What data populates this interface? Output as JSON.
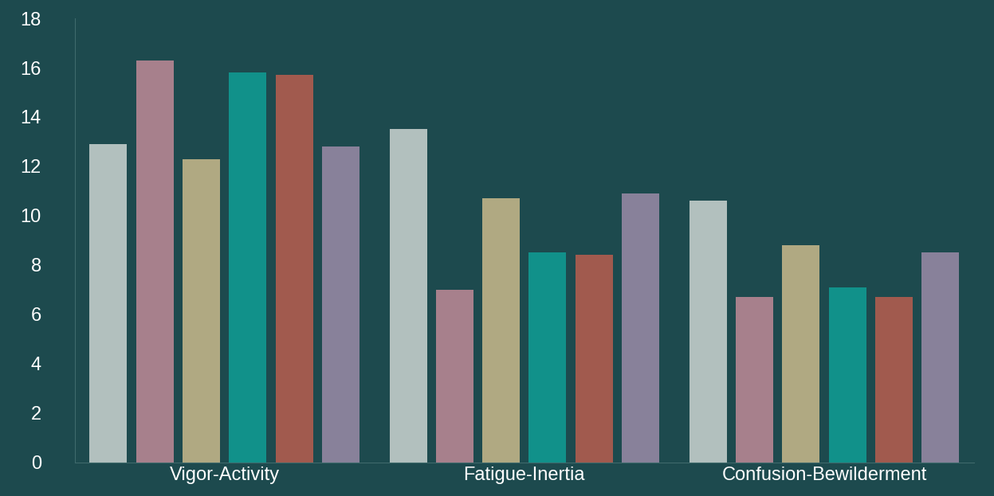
{
  "chart_data": {
    "type": "bar",
    "categories": [
      "Vigor-Activity",
      "Fatigue-Inertia",
      "Confusion-Bewilderment"
    ],
    "series": [
      {
        "color": "#cdd6d3",
        "values": [
          12.9,
          13.5,
          10.6
        ]
      },
      {
        "color": "#c08a98",
        "values": [
          16.3,
          7.0,
          6.7
        ]
      },
      {
        "color": "#cbbb8c",
        "values": [
          12.3,
          10.7,
          8.8
        ]
      },
      {
        "color": "#0f9e95",
        "values": [
          15.8,
          8.5,
          7.1
        ]
      },
      {
        "color": "#b95e4f",
        "values": [
          15.7,
          8.4,
          6.7
        ]
      },
      {
        "color": "#9c8ca8",
        "values": [
          12.8,
          10.9,
          8.5
        ]
      }
    ],
    "ylim": [
      0,
      18
    ],
    "yticks": [
      0,
      2,
      4,
      6,
      8,
      10,
      12,
      14,
      16,
      18
    ],
    "grid": false
  }
}
